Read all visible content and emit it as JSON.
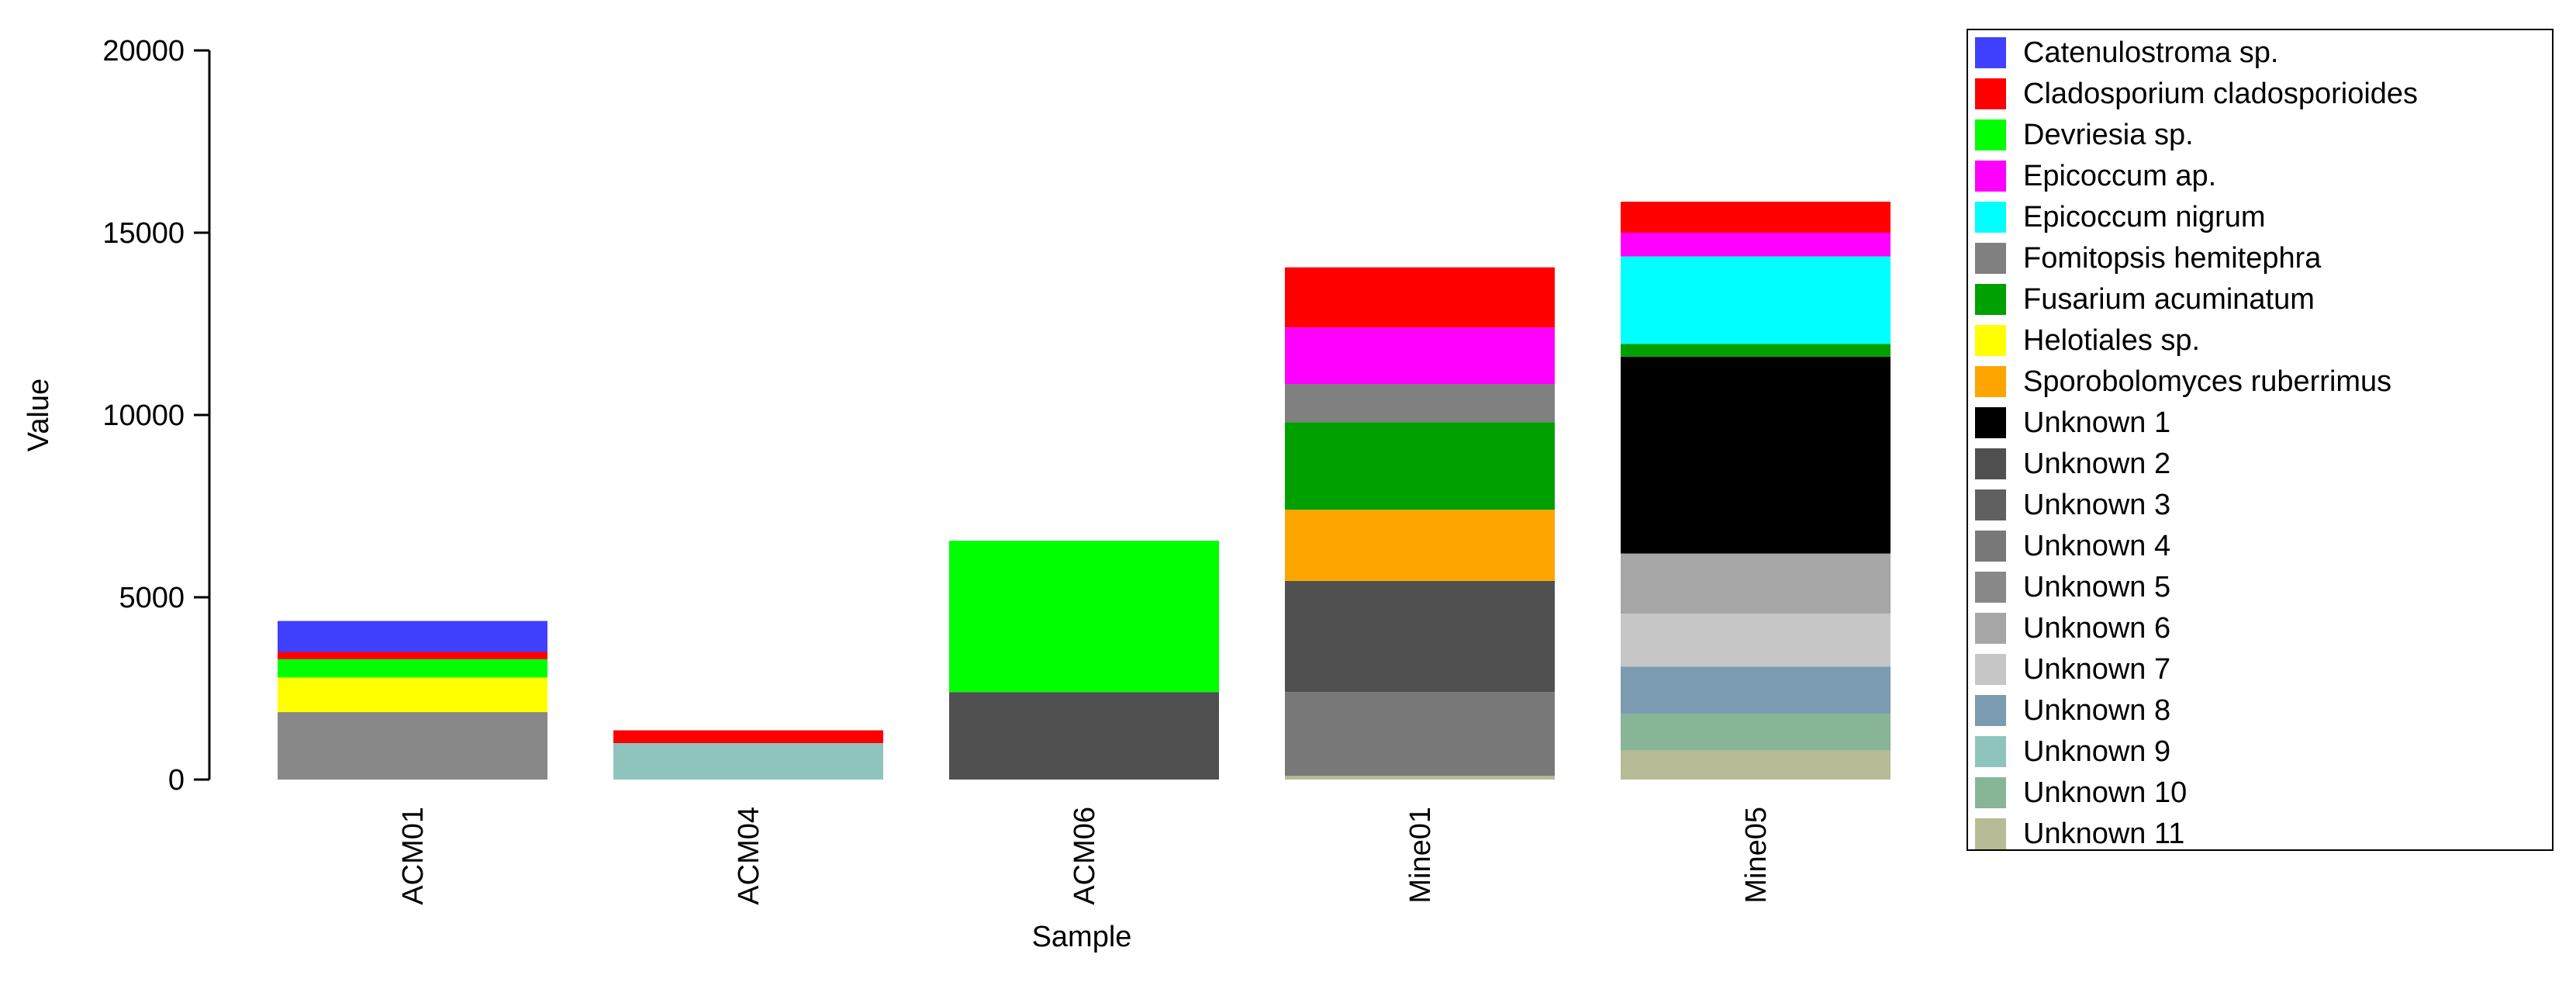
{
  "chart_data": {
    "type": "bar",
    "stacked": true,
    "xlabel": "Sample",
    "ylabel": "Value",
    "ylim": [
      0,
      20000
    ],
    "yticks": [
      "0",
      "5000",
      "10000",
      "15000",
      "20000"
    ],
    "ytick_values": [
      0,
      5000,
      10000,
      15000,
      20000
    ],
    "categories": [
      "ACM01",
      "ACM04",
      "ACM06",
      "Mine01",
      "Mine05"
    ],
    "legend_position": "right",
    "series": [
      {
        "name": "Catenulostroma sp.",
        "color": "#4040ff",
        "values": [
          850,
          0,
          0,
          0,
          0
        ]
      },
      {
        "name": "Cladosporium cladosporioides",
        "color": "#ff0000",
        "values": [
          200,
          350,
          0,
          1650,
          850
        ]
      },
      {
        "name": "Devriesia sp.",
        "color": "#00ff00",
        "values": [
          500,
          0,
          4150,
          0,
          0
        ]
      },
      {
        "name": "Epicoccum ap.",
        "color": "#ff00ff",
        "values": [
          0,
          0,
          0,
          1550,
          650
        ]
      },
      {
        "name": "Epicoccum nigrum",
        "color": "#00ffff",
        "values": [
          0,
          0,
          0,
          0,
          2400
        ]
      },
      {
        "name": "Fomitopsis hemitephra",
        "color": "#808080",
        "values": [
          0,
          0,
          0,
          1050,
          0
        ]
      },
      {
        "name": "Fusarium acuminatum",
        "color": "#00a000",
        "values": [
          0,
          0,
          0,
          2400,
          350
        ]
      },
      {
        "name": "Helotiales sp.",
        "color": "#ffff00",
        "values": [
          950,
          0,
          0,
          0,
          0
        ]
      },
      {
        "name": "Sporobolomyces ruberrimus",
        "color": "#ffa500",
        "values": [
          0,
          0,
          0,
          1950,
          0
        ]
      },
      {
        "name": "Unknown 1",
        "color": "#000000",
        "values": [
          0,
          0,
          0,
          0,
          5400
        ]
      },
      {
        "name": "Unknown 2",
        "color": "#505050",
        "values": [
          0,
          0,
          2400,
          3050,
          0
        ]
      },
      {
        "name": "Unknown 3",
        "color": "#606060",
        "values": [
          0,
          0,
          0,
          0,
          0
        ]
      },
      {
        "name": "Unknown 4",
        "color": "#787878",
        "values": [
          0,
          0,
          0,
          2300,
          0
        ]
      },
      {
        "name": "Unknown 5",
        "color": "#888888",
        "values": [
          1850,
          0,
          0,
          0,
          0
        ]
      },
      {
        "name": "Unknown 6",
        "color": "#a6a6a6",
        "values": [
          0,
          0,
          0,
          0,
          1650
        ]
      },
      {
        "name": "Unknown 7",
        "color": "#c6c6c6",
        "values": [
          0,
          0,
          0,
          0,
          1450
        ]
      },
      {
        "name": "Unknown 8",
        "color": "#7b9bb0",
        "values": [
          0,
          0,
          0,
          0,
          1300
        ]
      },
      {
        "name": "Unknown 9",
        "color": "#8fc4bc",
        "values": [
          0,
          1000,
          0,
          0,
          0
        ]
      },
      {
        "name": "Unknown 10",
        "color": "#88b596",
        "values": [
          0,
          0,
          0,
          0,
          1000
        ]
      },
      {
        "name": "Unknown 11",
        "color": "#b7bb96",
        "values": [
          0,
          0,
          0,
          100,
          800
        ]
      }
    ],
    "stack_order": [
      [
        "Unknown 5",
        "Helotiales sp.",
        "Devriesia sp.",
        "Cladosporium cladosporioides",
        "Catenulostroma sp."
      ],
      [
        "Unknown 9",
        "Cladosporium cladosporioides"
      ],
      [
        "Unknown 2",
        "Devriesia sp."
      ],
      [
        "Unknown 11",
        "Unknown 4",
        "Unknown 2",
        "Sporobolomyces ruberrimus",
        "Fusarium acuminatum",
        "Fomitopsis hemitephra",
        "Epicoccum ap.",
        "Cladosporium cladosporioides"
      ],
      [
        "Unknown 11",
        "Unknown 10",
        "Unknown 8",
        "Unknown 7",
        "Unknown 6",
        "Unknown 1",
        "Fusarium acuminatum",
        "Epicoccum nigrum",
        "Epicoccum ap.",
        "Cladosporium cladosporioides"
      ]
    ]
  }
}
